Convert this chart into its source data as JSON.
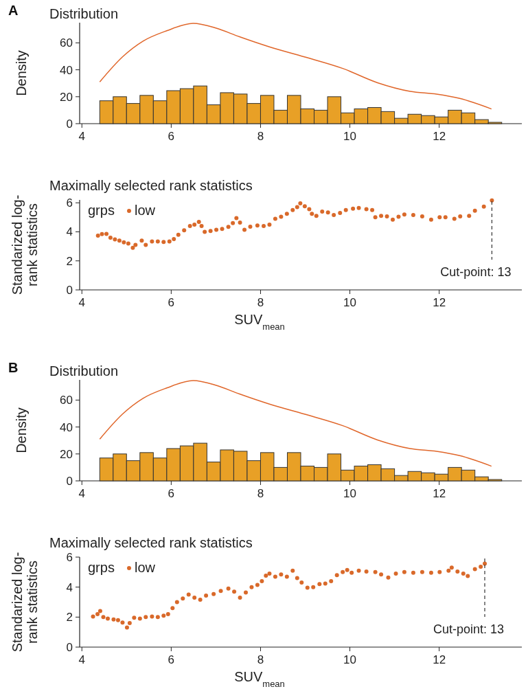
{
  "chart_data": [
    {
      "type": "histogram",
      "title": "Distribution",
      "ylabel": "Density",
      "annotations": [
        "A"
      ],
      "xlim": [
        3.95,
        13.85
      ],
      "xticks": [
        4,
        6,
        8,
        10,
        12
      ],
      "ylim": [
        0,
        75
      ],
      "yticks": [
        0,
        20,
        40,
        60
      ],
      "series": [
        {
          "type": "histogram",
          "color": "#e8a026",
          "bins": [
            4.4,
            4.7,
            5.0,
            5.3,
            5.6,
            5.9,
            6.2,
            6.5,
            6.8,
            7.1,
            7.4,
            7.7,
            8.0,
            8.3,
            8.6,
            8.9,
            9.2,
            9.5,
            9.8,
            10.1,
            10.4,
            10.7,
            11.0,
            11.3,
            11.6,
            11.9,
            12.2,
            12.5,
            12.8,
            13.1,
            13.4
          ],
          "values": [
            17,
            20,
            15,
            21,
            17,
            24.5,
            26,
            28,
            14,
            23,
            22,
            15,
            21,
            10,
            21,
            11,
            10,
            20,
            8,
            11,
            12,
            9,
            4,
            7,
            6,
            5,
            10,
            8,
            3,
            1
          ]
        },
        {
          "type": "line",
          "color": "#e0662a",
          "x": [
            4.4,
            4.91,
            5.37,
            5.9,
            6.49,
            7.01,
            7.53,
            8.2,
            8.98,
            9.84,
            10.62,
            11.35,
            11.94,
            12.46,
            13.17
          ],
          "values": [
            31,
            49.6,
            61.3,
            69,
            74.5,
            70.9,
            64.5,
            57,
            49.6,
            41,
            30.4,
            24,
            21.9,
            18.7,
            10.9
          ]
        }
      ]
    },
    {
      "type": "scatter",
      "title": "Maximally selected rank statistics",
      "xlabel": "SUV$_{mean}$",
      "ylabel": "Standarized log-rank statistics",
      "xlim": [
        3.95,
        13.85
      ],
      "xticks": [
        4,
        6,
        8,
        10,
        12
      ],
      "ylim": [
        0,
        6.2
      ],
      "yticks": [
        0,
        2,
        4,
        6
      ],
      "marker": "circle",
      "legend": "top left",
      "legend_title": "grps",
      "ref_lines": [
        {
          "axis": "x",
          "value": 13.18,
          "label": "Cut-point: 13",
          "line_style": "dashed",
          "color": "#333333"
        }
      ],
      "series": [
        {
          "name": "low",
          "color": "#d9692a",
          "x": [
            4.36,
            4.45,
            4.55,
            4.64,
            4.74,
            4.84,
            4.94,
            5.04,
            5.14,
            5.2,
            5.34,
            5.43,
            5.57,
            5.7,
            5.83,
            5.96,
            6.06,
            6.16,
            6.29,
            6.42,
            6.52,
            6.62,
            6.68,
            6.75,
            6.88,
            7.01,
            7.14,
            7.28,
            7.38,
            7.46,
            7.54,
            7.64,
            7.77,
            7.93,
            8.07,
            8.2,
            8.33,
            8.46,
            8.59,
            8.72,
            8.82,
            8.89,
            8.99,
            9.09,
            9.15,
            9.25,
            9.38,
            9.51,
            9.64,
            9.78,
            9.91,
            10.07,
            10.2,
            10.37,
            10.5,
            10.57,
            10.7,
            10.83,
            10.96,
            11.09,
            11.22,
            11.42,
            11.62,
            11.82,
            12.01,
            12.14,
            12.34,
            12.47,
            12.67,
            12.8,
            13.0,
            13.18
          ],
          "values": [
            3.74,
            3.84,
            3.86,
            3.6,
            3.48,
            3.4,
            3.28,
            3.2,
            2.9,
            3.1,
            3.4,
            3.1,
            3.34,
            3.34,
            3.3,
            3.34,
            3.5,
            3.8,
            4.1,
            4.4,
            4.5,
            4.68,
            4.4,
            4.0,
            4.06,
            4.14,
            4.2,
            4.34,
            4.6,
            4.94,
            4.64,
            4.14,
            4.36,
            4.44,
            4.4,
            4.5,
            4.9,
            5.04,
            5.24,
            5.5,
            5.7,
            5.96,
            5.76,
            5.56,
            5.24,
            5.1,
            5.4,
            5.34,
            5.16,
            5.3,
            5.5,
            5.6,
            5.64,
            5.56,
            5.5,
            5.0,
            5.1,
            5.06,
            4.84,
            5.04,
            5.2,
            5.16,
            5.06,
            4.84,
            5.0,
            5.0,
            4.9,
            5.06,
            5.1,
            5.46,
            5.74,
            6.16
          ]
        }
      ]
    },
    {
      "type": "histogram",
      "title": "Distribution",
      "ylabel": "Density",
      "annotations": [
        "B"
      ],
      "xlim": [
        3.95,
        13.85
      ],
      "xticks": [
        4,
        6,
        8,
        10,
        12
      ],
      "ylim": [
        0,
        75
      ],
      "yticks": [
        0,
        20,
        40,
        60
      ],
      "series": [
        {
          "type": "histogram",
          "color": "#e8a026",
          "bins": [
            4.4,
            4.7,
            5.0,
            5.3,
            5.6,
            5.9,
            6.2,
            6.5,
            6.8,
            7.1,
            7.4,
            7.7,
            8.0,
            8.3,
            8.6,
            8.9,
            9.2,
            9.5,
            9.8,
            10.1,
            10.4,
            10.7,
            11.0,
            11.3,
            11.6,
            11.9,
            12.2,
            12.5,
            12.8,
            13.1,
            13.4
          ],
          "values": [
            17,
            20,
            15,
            21,
            17,
            24,
            26,
            28,
            14,
            23,
            22,
            15,
            21,
            10,
            21,
            11,
            10,
            20,
            8,
            11,
            12,
            9,
            4,
            7,
            6,
            5,
            10,
            8,
            3,
            1
          ]
        },
        {
          "type": "line",
          "color": "#e0662a",
          "x": [
            4.4,
            4.91,
            5.37,
            5.9,
            6.49,
            7.01,
            7.53,
            8.2,
            8.98,
            9.84,
            10.62,
            11.35,
            11.94,
            12.46,
            13.17
          ],
          "values": [
            31,
            49.6,
            61.3,
            69,
            74.5,
            70.9,
            64.5,
            57,
            49.6,
            41,
            30.4,
            24,
            21.9,
            18.7,
            10.9
          ]
        }
      ]
    },
    {
      "type": "scatter",
      "title": "Maximally selected rank statistics",
      "xlabel": "SUV$_{mean}$",
      "ylabel": "Standarized log-rank statistics",
      "xlim": [
        3.95,
        13.85
      ],
      "xticks": [
        4,
        6,
        8,
        10,
        12
      ],
      "ylim": [
        0,
        6
      ],
      "yticks": [
        0,
        2,
        4,
        6
      ],
      "marker": "circle",
      "legend": "top left",
      "legend_title": "grps",
      "ref_lines": [
        {
          "axis": "x",
          "value": 13.02,
          "label": "Cut-point: 13",
          "line_style": "dashed",
          "color": "#333333"
        }
      ],
      "series": [
        {
          "name": "low",
          "color": "#d9692a",
          "x": [
            4.25,
            4.35,
            4.41,
            4.48,
            4.58,
            4.71,
            4.81,
            4.91,
            5.01,
            5.07,
            5.17,
            5.3,
            5.43,
            5.57,
            5.7,
            5.83,
            5.93,
            6.03,
            6.13,
            6.26,
            6.39,
            6.52,
            6.65,
            6.78,
            6.95,
            7.11,
            7.28,
            7.41,
            7.54,
            7.67,
            7.8,
            7.93,
            8.03,
            8.12,
            8.2,
            8.33,
            8.46,
            8.59,
            8.72,
            8.82,
            8.92,
            9.05,
            9.18,
            9.32,
            9.45,
            9.58,
            9.71,
            9.84,
            9.94,
            10.04,
            10.2,
            10.37,
            10.57,
            10.7,
            10.86,
            11.03,
            11.22,
            11.42,
            11.62,
            11.82,
            12.01,
            12.21,
            12.28,
            12.41,
            12.54,
            12.64,
            12.8,
            12.93,
            13.02
          ],
          "values": [
            2.04,
            2.2,
            2.4,
            2.0,
            1.9,
            1.84,
            1.8,
            1.64,
            1.3,
            1.6,
            1.96,
            1.9,
            2.0,
            2.04,
            2.0,
            2.1,
            2.2,
            2.6,
            3.0,
            3.24,
            3.5,
            3.3,
            3.16,
            3.44,
            3.54,
            3.74,
            3.9,
            3.7,
            3.3,
            3.64,
            4.0,
            4.14,
            4.4,
            4.76,
            4.9,
            4.7,
            4.84,
            4.7,
            5.1,
            4.6,
            4.3,
            3.96,
            4.0,
            4.2,
            4.24,
            4.4,
            4.8,
            5.0,
            5.14,
            4.96,
            5.1,
            5.04,
            5.0,
            4.84,
            4.64,
            4.9,
            5.0,
            4.96,
            5.0,
            4.96,
            5.0,
            5.1,
            5.3,
            5.04,
            4.9,
            4.74,
            5.2,
            5.36,
            5.56
          ]
        }
      ]
    }
  ]
}
